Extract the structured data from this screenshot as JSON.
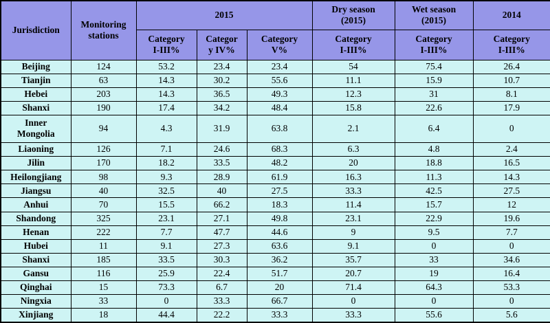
{
  "colors": {
    "header_bg": "#9696e8",
    "body_bg": "#cef4f4",
    "border": "#000000",
    "text": "#000000"
  },
  "header": {
    "jurisdiction": "Jurisdiction",
    "stations": "Monitoring\nstations",
    "y2015": "2015",
    "dry_season": "Dry season\n(2015)",
    "wet_season": "Wet season\n(2015)",
    "y2014": "2014",
    "cat_i_iii": "Category\nI-III%",
    "cat_iv": "Categor\ny IV%",
    "cat_v": "Category\nV%",
    "cat_i_iii_dry": "Category\nI-III%",
    "cat_i_iii_wet": "Category\nI-III%",
    "cat_i_iii_2014": "Category\nI-III%"
  },
  "chart_data": {
    "type": "table",
    "columns": [
      "Jurisdiction",
      "Monitoring stations",
      "2015 Category I-III%",
      "2015 Category IV%",
      "2015 Category V%",
      "Dry season (2015) Category I-III%",
      "Wet season (2015) Category I-III%",
      "2014 Category I-III%"
    ],
    "rows": [
      {
        "jurisdiction": "Beijing",
        "values": [
          124,
          53.2,
          23.4,
          23.4,
          54,
          75.4,
          26.4
        ]
      },
      {
        "jurisdiction": "Tianjin",
        "values": [
          63,
          14.3,
          30.2,
          55.6,
          11.1,
          15.9,
          10.7
        ]
      },
      {
        "jurisdiction": "Hebei",
        "values": [
          203,
          14.3,
          36.5,
          49.3,
          12.3,
          31,
          8.1
        ]
      },
      {
        "jurisdiction": "Shanxi",
        "values": [
          190,
          17.4,
          34.2,
          48.4,
          15.8,
          22.6,
          17.9
        ]
      },
      {
        "jurisdiction": "Inner\nMongolia",
        "values": [
          94,
          4.3,
          31.9,
          63.8,
          2.1,
          6.4,
          0
        ]
      },
      {
        "jurisdiction": "Liaoning",
        "values": [
          126,
          7.1,
          24.6,
          68.3,
          6.3,
          4.8,
          2.4
        ]
      },
      {
        "jurisdiction": "Jilin",
        "values": [
          170,
          18.2,
          33.5,
          48.2,
          20,
          18.8,
          16.5
        ]
      },
      {
        "jurisdiction": "Heilongjiang",
        "values": [
          98,
          9.3,
          28.9,
          61.9,
          16.3,
          11.3,
          14.3
        ]
      },
      {
        "jurisdiction": "Jiangsu",
        "values": [
          40,
          32.5,
          40,
          27.5,
          33.3,
          42.5,
          27.5
        ]
      },
      {
        "jurisdiction": "Anhui",
        "values": [
          70,
          15.5,
          66.2,
          18.3,
          11.4,
          15.7,
          12
        ]
      },
      {
        "jurisdiction": "Shandong",
        "values": [
          325,
          23.1,
          27.1,
          49.8,
          23.1,
          22.9,
          19.6
        ]
      },
      {
        "jurisdiction": "Henan",
        "values": [
          222,
          7.7,
          47.7,
          44.6,
          9,
          9.5,
          7.7
        ]
      },
      {
        "jurisdiction": "Hubei",
        "values": [
          11,
          9.1,
          27.3,
          63.6,
          9.1,
          0,
          0
        ]
      },
      {
        "jurisdiction": "Shanxi",
        "values": [
          185,
          33.5,
          30.3,
          36.2,
          35.7,
          33,
          34.6
        ]
      },
      {
        "jurisdiction": "Gansu",
        "values": [
          116,
          25.9,
          22.4,
          51.7,
          20.7,
          19,
          16.4
        ]
      },
      {
        "jurisdiction": "Qinghai",
        "values": [
          15,
          73.3,
          6.7,
          20,
          71.4,
          64.3,
          53.3
        ]
      },
      {
        "jurisdiction": "Ningxia",
        "values": [
          33,
          0,
          33.3,
          66.7,
          0,
          0,
          0
        ]
      },
      {
        "jurisdiction": "Xinjiang",
        "values": [
          18,
          44.4,
          22.2,
          33.3,
          33.3,
          55.6,
          5.6
        ]
      }
    ]
  }
}
